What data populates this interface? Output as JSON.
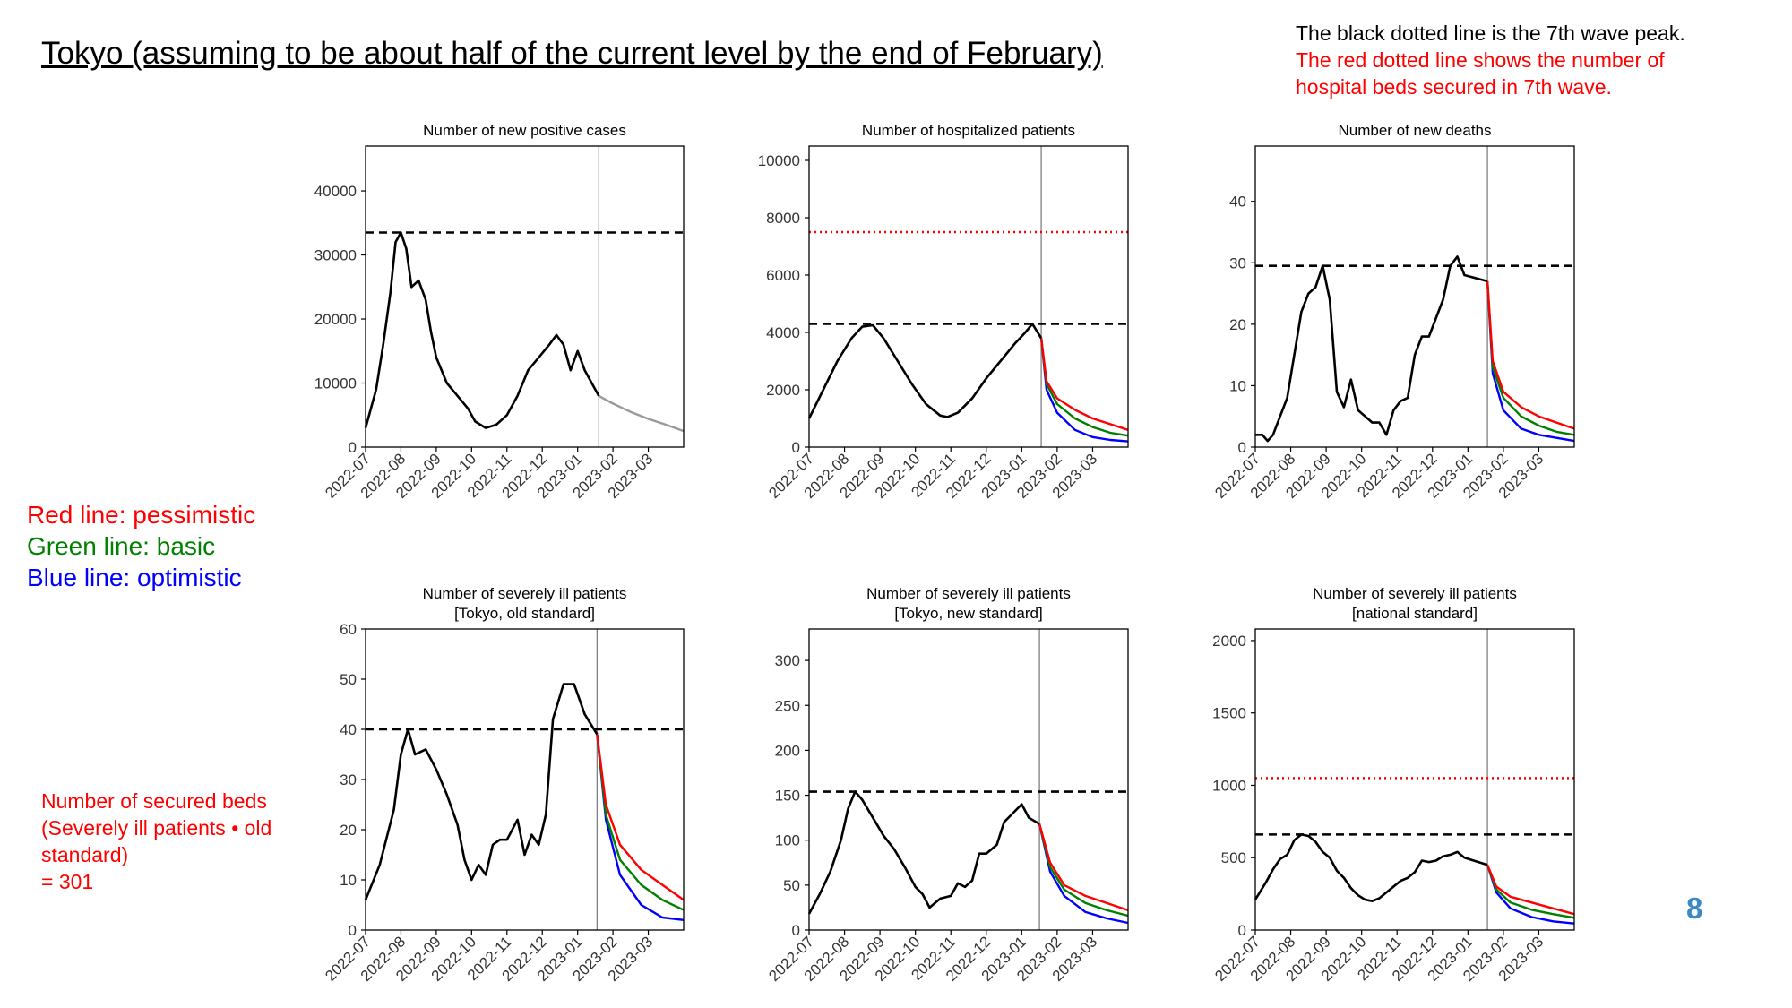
{
  "title": "Tokyo (assuming to be about half of the current level by the end of February)",
  "note": {
    "line1": "The black dotted line is the 7th wave peak.",
    "line2": "The red dotted line shows the number of",
    "line3": "hospital beds secured in 7th wave."
  },
  "legend": {
    "red": "Red line: pessimistic",
    "green": "Green line: basic",
    "blue": "Blue line: optimistic"
  },
  "beds_note": {
    "line1": "Number of secured beds",
    "line2": "(Severely ill patients • old",
    "line3": "standard)",
    "line4": "= 301"
  },
  "page_number": "8",
  "colors": {
    "observed": "#000000",
    "projection_single": "#999999",
    "pessimistic": "#ff0000",
    "basic": "#008000",
    "optimistic": "#0000ff",
    "peak_line": "#000000",
    "beds_line": "#ff0000",
    "current_date_line": "#808080",
    "page_number": "#3b8ac4"
  },
  "chart_data": [
    {
      "type": "line",
      "title": [
        "Number of new positive cases"
      ],
      "x_ticks": [
        "2022-07",
        "2022-08",
        "2022-09",
        "2022-10",
        "2022-11",
        "2022-12",
        "2023-01",
        "2023-02",
        "2023-03"
      ],
      "x_range": [
        0,
        9
      ],
      "current_date_x": 6.6,
      "ylim": [
        0,
        47000
      ],
      "y_ticks": [
        0,
        10000,
        20000,
        30000,
        40000
      ],
      "y_tick_labels": [
        "0",
        "10000",
        "20000",
        "30000",
        "40000"
      ],
      "peak_line": 33500,
      "observed": [
        [
          0,
          3000
        ],
        [
          0.3,
          9000
        ],
        [
          0.5,
          16000
        ],
        [
          0.7,
          24000
        ],
        [
          0.85,
          32000
        ],
        [
          1.0,
          33500
        ],
        [
          1.15,
          31000
        ],
        [
          1.3,
          25000
        ],
        [
          1.5,
          26000
        ],
        [
          1.7,
          23000
        ],
        [
          1.85,
          18000
        ],
        [
          2.0,
          14000
        ],
        [
          2.3,
          10000
        ],
        [
          2.6,
          8000
        ],
        [
          2.9,
          6000
        ],
        [
          3.1,
          4000
        ],
        [
          3.4,
          3000
        ],
        [
          3.7,
          3500
        ],
        [
          4.0,
          5000
        ],
        [
          4.3,
          8000
        ],
        [
          4.6,
          12000
        ],
        [
          4.9,
          14000
        ],
        [
          5.2,
          16000
        ],
        [
          5.4,
          17500
        ],
        [
          5.6,
          16000
        ],
        [
          5.8,
          12000
        ],
        [
          6.0,
          15000
        ],
        [
          6.2,
          12000
        ],
        [
          6.5,
          9000
        ],
        [
          6.6,
          8000
        ]
      ],
      "projection": [
        [
          6.6,
          8000
        ],
        [
          7.0,
          6800
        ],
        [
          7.5,
          5500
        ],
        [
          8.0,
          4400
        ],
        [
          8.5,
          3500
        ],
        [
          9.0,
          2500
        ]
      ]
    },
    {
      "type": "line",
      "title": [
        "Number of hospitalized patients"
      ],
      "x_ticks": [
        "2022-07",
        "2022-08",
        "2022-09",
        "2022-10",
        "2022-11",
        "2022-12",
        "2023-01",
        "2023-02",
        "2023-03"
      ],
      "x_range": [
        0,
        9
      ],
      "current_date_x": 6.55,
      "ylim": [
        0,
        10500
      ],
      "y_ticks": [
        0,
        2000,
        4000,
        6000,
        8000,
        10000
      ],
      "y_tick_labels": [
        "0",
        "2000",
        "4000",
        "6000",
        "8000",
        "10000"
      ],
      "peak_line": 4300,
      "beds_line": 7500,
      "observed": [
        [
          0,
          1000
        ],
        [
          0.4,
          2000
        ],
        [
          0.8,
          3000
        ],
        [
          1.2,
          3800
        ],
        [
          1.5,
          4200
        ],
        [
          1.8,
          4250
        ],
        [
          2.1,
          3800
        ],
        [
          2.5,
          3000
        ],
        [
          2.9,
          2200
        ],
        [
          3.3,
          1500
        ],
        [
          3.7,
          1100
        ],
        [
          3.9,
          1050
        ],
        [
          4.2,
          1200
        ],
        [
          4.6,
          1700
        ],
        [
          5.0,
          2400
        ],
        [
          5.4,
          3000
        ],
        [
          5.8,
          3600
        ],
        [
          6.1,
          4000
        ],
        [
          6.3,
          4300
        ],
        [
          6.55,
          3800
        ]
      ],
      "pessimistic": [
        [
          6.55,
          3800
        ],
        [
          6.7,
          2300
        ],
        [
          7.0,
          1700
        ],
        [
          7.5,
          1300
        ],
        [
          8.0,
          1000
        ],
        [
          8.5,
          800
        ],
        [
          9.0,
          600
        ]
      ],
      "basic": [
        [
          6.55,
          3800
        ],
        [
          6.7,
          2200
        ],
        [
          7.0,
          1500
        ],
        [
          7.5,
          1000
        ],
        [
          8.0,
          700
        ],
        [
          8.5,
          500
        ],
        [
          9.0,
          400
        ]
      ],
      "optimistic": [
        [
          6.55,
          3800
        ],
        [
          6.7,
          2000
        ],
        [
          7.0,
          1200
        ],
        [
          7.5,
          600
        ],
        [
          8.0,
          350
        ],
        [
          8.5,
          250
        ],
        [
          9.0,
          200
        ]
      ]
    },
    {
      "type": "line",
      "title": [
        "Number of new deaths"
      ],
      "x_ticks": [
        "2022-07",
        "2022-08",
        "2022-09",
        "2022-10",
        "2022-11",
        "2022-12",
        "2023-01",
        "2023-02",
        "2023-03"
      ],
      "x_range": [
        0,
        9
      ],
      "current_date_x": 6.55,
      "ylim": [
        0,
        49
      ],
      "y_ticks": [
        0,
        10,
        20,
        30,
        40
      ],
      "y_tick_labels": [
        "0",
        "10",
        "20",
        "30",
        "40"
      ],
      "peak_line": 29.5,
      "observed": [
        [
          0,
          2
        ],
        [
          0.2,
          2
        ],
        [
          0.35,
          1
        ],
        [
          0.5,
          2
        ],
        [
          0.7,
          5
        ],
        [
          0.9,
          8
        ],
        [
          1.1,
          15
        ],
        [
          1.3,
          22
        ],
        [
          1.5,
          25
        ],
        [
          1.7,
          26
        ],
        [
          1.9,
          29.5
        ],
        [
          2.1,
          24
        ],
        [
          2.3,
          9
        ],
        [
          2.5,
          6.5
        ],
        [
          2.7,
          11
        ],
        [
          2.9,
          6
        ],
        [
          3.1,
          5
        ],
        [
          3.3,
          4
        ],
        [
          3.5,
          4
        ],
        [
          3.7,
          2
        ],
        [
          3.9,
          6
        ],
        [
          4.1,
          7.5
        ],
        [
          4.3,
          8
        ],
        [
          4.5,
          15
        ],
        [
          4.7,
          18
        ],
        [
          4.9,
          18
        ],
        [
          5.1,
          21
        ],
        [
          5.3,
          24
        ],
        [
          5.5,
          29.5
        ],
        [
          5.7,
          31
        ],
        [
          5.9,
          28
        ],
        [
          6.55,
          27
        ]
      ],
      "pessimistic": [
        [
          6.55,
          27
        ],
        [
          6.7,
          14
        ],
        [
          7.0,
          9
        ],
        [
          7.5,
          6.5
        ],
        [
          8.0,
          5
        ],
        [
          8.5,
          4
        ],
        [
          9.0,
          3
        ]
      ],
      "basic": [
        [
          6.55,
          27
        ],
        [
          6.7,
          13
        ],
        [
          7.0,
          8
        ],
        [
          7.5,
          5
        ],
        [
          8.0,
          3.5
        ],
        [
          8.5,
          2.5
        ],
        [
          9.0,
          2
        ]
      ],
      "optimistic": [
        [
          6.55,
          27
        ],
        [
          6.7,
          12
        ],
        [
          7.0,
          6
        ],
        [
          7.5,
          3
        ],
        [
          8.0,
          2
        ],
        [
          8.5,
          1.5
        ],
        [
          9.0,
          1
        ]
      ]
    },
    {
      "type": "line",
      "title": [
        "Number of severely ill patients",
        "[Tokyo, old standard]"
      ],
      "x_ticks": [
        "2022-07",
        "2022-08",
        "2022-09",
        "2022-10",
        "2022-11",
        "2022-12",
        "2023-01",
        "2023-02",
        "2023-03"
      ],
      "x_range": [
        0,
        9
      ],
      "current_date_x": 6.55,
      "ylim": [
        0,
        60
      ],
      "y_ticks": [
        0,
        10,
        20,
        30,
        40,
        50,
        60
      ],
      "y_tick_labels": [
        "0",
        "10",
        "20",
        "30",
        "40",
        "50",
        "60"
      ],
      "peak_line": 40,
      "observed": [
        [
          0,
          6
        ],
        [
          0.4,
          13
        ],
        [
          0.8,
          24
        ],
        [
          1.0,
          35
        ],
        [
          1.2,
          40
        ],
        [
          1.4,
          35
        ],
        [
          1.7,
          36
        ],
        [
          2.0,
          32
        ],
        [
          2.3,
          27
        ],
        [
          2.6,
          21
        ],
        [
          2.8,
          14
        ],
        [
          3.0,
          10
        ],
        [
          3.2,
          13
        ],
        [
          3.4,
          11
        ],
        [
          3.6,
          17
        ],
        [
          3.8,
          18
        ],
        [
          4.0,
          18
        ],
        [
          4.3,
          22
        ],
        [
          4.5,
          15
        ],
        [
          4.7,
          19
        ],
        [
          4.9,
          17
        ],
        [
          5.1,
          23
        ],
        [
          5.3,
          42
        ],
        [
          5.6,
          49
        ],
        [
          5.9,
          49
        ],
        [
          6.2,
          43
        ],
        [
          6.55,
          39
        ]
      ],
      "pessimistic": [
        [
          6.55,
          39
        ],
        [
          6.8,
          25
        ],
        [
          7.2,
          17
        ],
        [
          7.8,
          12
        ],
        [
          8.4,
          9
        ],
        [
          9.0,
          6
        ]
      ],
      "basic": [
        [
          6.55,
          39
        ],
        [
          6.8,
          23
        ],
        [
          7.2,
          14
        ],
        [
          7.8,
          9
        ],
        [
          8.4,
          6
        ],
        [
          9.0,
          4
        ]
      ],
      "optimistic": [
        [
          6.55,
          39
        ],
        [
          6.8,
          22
        ],
        [
          7.2,
          11
        ],
        [
          7.8,
          5
        ],
        [
          8.4,
          2.5
        ],
        [
          9.0,
          2
        ]
      ]
    },
    {
      "type": "line",
      "title": [
        "Number of severely ill patients",
        "[Tokyo, new standard]"
      ],
      "x_ticks": [
        "2022-07",
        "2022-08",
        "2022-09",
        "2022-10",
        "2022-11",
        "2022-12",
        "2023-01",
        "2023-02",
        "2023-03"
      ],
      "x_range": [
        0,
        9
      ],
      "current_date_x": 6.5,
      "ylim": [
        0,
        335
      ],
      "y_ticks": [
        0,
        50,
        100,
        150,
        200,
        250,
        300
      ],
      "y_tick_labels": [
        "0",
        "50",
        "100",
        "150",
        "200",
        "250",
        "300"
      ],
      "peak_line": 154,
      "observed": [
        [
          0,
          18
        ],
        [
          0.3,
          40
        ],
        [
          0.6,
          65
        ],
        [
          0.9,
          100
        ],
        [
          1.1,
          135
        ],
        [
          1.3,
          154
        ],
        [
          1.5,
          145
        ],
        [
          1.8,
          125
        ],
        [
          2.1,
          105
        ],
        [
          2.4,
          90
        ],
        [
          2.7,
          70
        ],
        [
          3.0,
          48
        ],
        [
          3.2,
          40
        ],
        [
          3.4,
          25
        ],
        [
          3.7,
          35
        ],
        [
          4.0,
          38
        ],
        [
          4.2,
          52
        ],
        [
          4.4,
          48
        ],
        [
          4.6,
          55
        ],
        [
          4.8,
          85
        ],
        [
          5.0,
          85
        ],
        [
          5.3,
          95
        ],
        [
          5.5,
          120
        ],
        [
          5.8,
          132
        ],
        [
          6.0,
          140
        ],
        [
          6.2,
          125
        ],
        [
          6.5,
          118
        ]
      ],
      "pessimistic": [
        [
          6.5,
          118
        ],
        [
          6.8,
          75
        ],
        [
          7.2,
          50
        ],
        [
          7.8,
          38
        ],
        [
          8.4,
          30
        ],
        [
          9.0,
          22
        ]
      ],
      "basic": [
        [
          6.5,
          118
        ],
        [
          6.8,
          70
        ],
        [
          7.2,
          45
        ],
        [
          7.8,
          30
        ],
        [
          8.4,
          22
        ],
        [
          9.0,
          16
        ]
      ],
      "optimistic": [
        [
          6.5,
          118
        ],
        [
          6.8,
          65
        ],
        [
          7.2,
          38
        ],
        [
          7.8,
          20
        ],
        [
          8.4,
          13
        ],
        [
          9.0,
          8
        ]
      ]
    },
    {
      "type": "line",
      "title": [
        "Number of severely ill patients",
        "[national standard]"
      ],
      "x_ticks": [
        "2022-07",
        "2022-08",
        "2022-09",
        "2022-10",
        "2022-11",
        "2022-12",
        "2023-01",
        "2023-02",
        "2023-03"
      ],
      "x_range": [
        0,
        9
      ],
      "current_date_x": 6.55,
      "ylim": [
        0,
        2080
      ],
      "y_ticks": [
        0,
        500,
        1000,
        1500,
        2000
      ],
      "y_tick_labels": [
        "0",
        "500",
        "1000",
        "1500",
        "2000"
      ],
      "peak_line": 660,
      "beds_line": 1050,
      "observed": [
        [
          0,
          210
        ],
        [
          0.3,
          330
        ],
        [
          0.5,
          420
        ],
        [
          0.7,
          490
        ],
        [
          0.9,
          520
        ],
        [
          1.1,
          620
        ],
        [
          1.3,
          660
        ],
        [
          1.5,
          650
        ],
        [
          1.7,
          610
        ],
        [
          1.9,
          540
        ],
        [
          2.1,
          500
        ],
        [
          2.3,
          410
        ],
        [
          2.5,
          360
        ],
        [
          2.7,
          290
        ],
        [
          2.9,
          240
        ],
        [
          3.1,
          210
        ],
        [
          3.3,
          200
        ],
        [
          3.5,
          220
        ],
        [
          3.7,
          260
        ],
        [
          3.9,
          300
        ],
        [
          4.1,
          340
        ],
        [
          4.3,
          360
        ],
        [
          4.5,
          400
        ],
        [
          4.7,
          480
        ],
        [
          4.9,
          470
        ],
        [
          5.1,
          480
        ],
        [
          5.3,
          510
        ],
        [
          5.5,
          520
        ],
        [
          5.7,
          540
        ],
        [
          5.9,
          500
        ],
        [
          6.55,
          450
        ]
      ],
      "pessimistic": [
        [
          6.55,
          450
        ],
        [
          6.8,
          300
        ],
        [
          7.2,
          230
        ],
        [
          7.8,
          190
        ],
        [
          8.4,
          150
        ],
        [
          9.0,
          110
        ]
      ],
      "basic": [
        [
          6.55,
          450
        ],
        [
          6.8,
          280
        ],
        [
          7.2,
          190
        ],
        [
          7.8,
          140
        ],
        [
          8.4,
          110
        ],
        [
          9.0,
          85
        ]
      ],
      "optimistic": [
        [
          6.55,
          450
        ],
        [
          6.8,
          260
        ],
        [
          7.2,
          150
        ],
        [
          7.8,
          90
        ],
        [
          8.4,
          60
        ],
        [
          9.0,
          45
        ]
      ]
    }
  ]
}
